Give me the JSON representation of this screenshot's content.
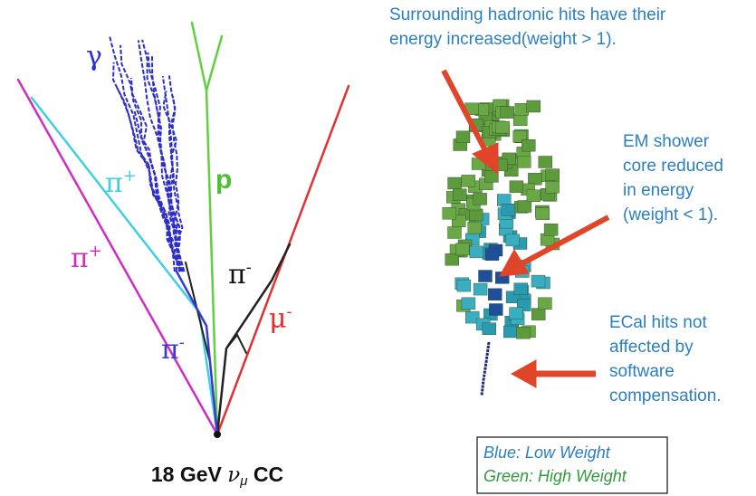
{
  "event_display": {
    "labels": {
      "gamma": "γ",
      "pi_plus_cyan": {
        "base": "π",
        "sup": "+"
      },
      "proton": "p",
      "pi_plus_magenta": {
        "base": "π",
        "sup": "+"
      },
      "pi_minus_black": {
        "base": "π",
        "sup": "-"
      },
      "mu_minus": {
        "base": "μ",
        "sup": "-"
      },
      "pi_minus_blue": {
        "base": "π",
        "sup": "-"
      }
    },
    "caption": {
      "energy": "18 GeV",
      "nu": "ν",
      "flavor": "μ",
      "interaction": "CC"
    }
  },
  "shower_display": {
    "annotations": [
      {
        "lines": [
          "Surrounding hadronic hits have their",
          "energy increased(weight > 1)."
        ]
      },
      {
        "lines": [
          "EM shower",
          "core reduced",
          "in energy",
          "(weight < 1)."
        ]
      },
      {
        "lines": [
          "ECal hits not",
          "affected by",
          "software",
          "compensation."
        ]
      }
    ],
    "legend": {
      "low": "Blue: Low Weight",
      "high": "Green: High Weight"
    }
  }
}
